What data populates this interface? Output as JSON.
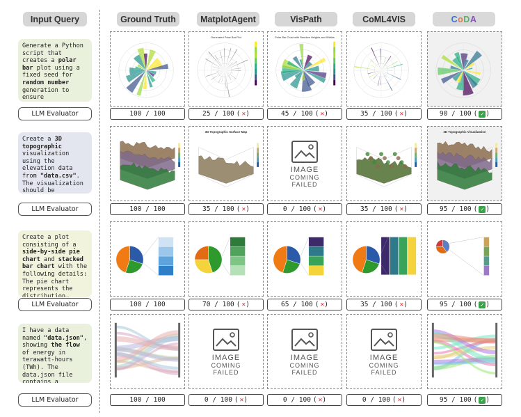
{
  "headers": {
    "input_query": "Input Query",
    "ground_truth": "Ground Truth",
    "matplotagent": "MatplotAgent",
    "vispath": "VisPath",
    "coml4vis": "CoML4VIS",
    "coda": "CoDA"
  },
  "evaluator_label": "LLM Evaluator",
  "failed_image": {
    "line1": "IMAGE",
    "line2": "COMING",
    "line3": "FAILED"
  },
  "rows": [
    {
      "query_parts": [
        {
          "t": "Generate a Python script that creates a ",
          "b": false
        },
        {
          "t": "polar bar",
          "b": true
        },
        {
          "t": " plot using a fixed seed for ",
          "b": false
        },
        {
          "t": "random number",
          "b": true
        },
        {
          "t": " generation to ensure reproducibility…",
          "b": false
        }
      ],
      "scores": [
        "100 / 100",
        "25 / 100",
        "45 / 100",
        "35 / 100",
        "90 / 100"
      ],
      "marks": [
        "",
        "x",
        "x",
        "x",
        "ok"
      ],
      "thumb_titles": [
        "",
        "Generated Polar Bar Plot",
        "Polar Bar Chart with Random Heights and Widths",
        "",
        ""
      ]
    },
    {
      "query_parts": [
        {
          "t": "Create a ",
          "b": false
        },
        {
          "t": "3D topographic",
          "b": true
        },
        {
          "t": " visualization using the elevation data from ",
          "b": false
        },
        {
          "t": "\"data.csv\"",
          "b": true
        },
        {
          "t": ". The visualization should be structured in…",
          "b": false
        }
      ],
      "scores": [
        "100 / 100",
        "35 / 100",
        "0 / 100",
        "35 / 100",
        "95 / 100"
      ],
      "marks": [
        "",
        "x",
        "x",
        "x",
        "ok"
      ],
      "thumb_titles": [
        "",
        "3D Topographic Surface Map",
        "",
        "",
        "3D Topographic Visualization"
      ]
    },
    {
      "query_parts": [
        {
          "t": "Create a plot consisting of a ",
          "b": false
        },
        {
          "t": "side-by-side pie chart",
          "b": true
        },
        {
          "t": " and ",
          "b": false
        },
        {
          "t": "stacked bar chart",
          "b": true
        },
        {
          "t": " with the following details: The pie chart represents the distribution…",
          "b": false
        }
      ],
      "scores": [
        "100 / 100",
        "70 / 100",
        "65 / 100",
        "35 / 100",
        "95 / 100"
      ],
      "marks": [
        "",
        "x",
        "x",
        "x",
        "ok"
      ],
      "thumb_titles": [
        "",
        "",
        "",
        "",
        ""
      ]
    },
    {
      "query_parts": [
        {
          "t": "I have a data named ",
          "b": false
        },
        {
          "t": "\"data.json\"",
          "b": true
        },
        {
          "t": ", showing ",
          "b": false
        },
        {
          "t": "the flow",
          "b": true
        },
        {
          "t": " of energy in terawatt-hours (TWh). The data.json file contains a dictionary…",
          "b": false
        }
      ],
      "scores": [
        "100 / 100",
        "0 / 100",
        "0 / 100",
        "0 / 100",
        "95 / 100"
      ],
      "marks": [
        "",
        "x",
        "x",
        "x",
        "ok"
      ],
      "thumb_titles": [
        "",
        "",
        "",
        "",
        ""
      ]
    }
  ]
}
